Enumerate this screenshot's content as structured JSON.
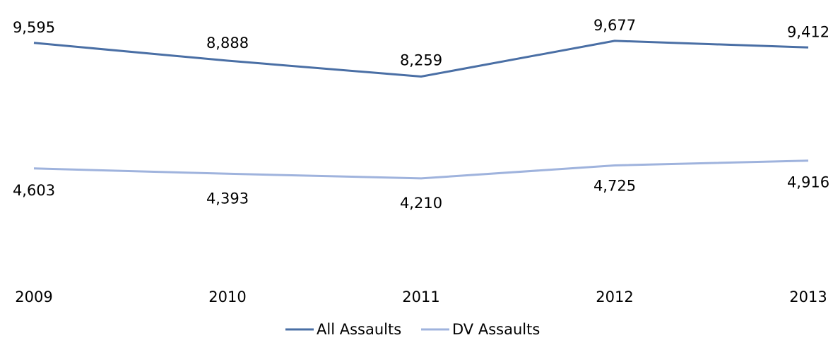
{
  "chart_data": {
    "type": "line",
    "title": "",
    "xlabel": "",
    "ylabel": "",
    "categories": [
      "2009",
      "2010",
      "2011",
      "2012",
      "2013"
    ],
    "series": [
      {
        "name": "All Assaults",
        "color": "#4a6fa5",
        "values": [
          9595,
          8888,
          8259,
          9677,
          9412
        ],
        "labels": [
          "9,595",
          "8,888",
          "8,259",
          "9,677",
          "9,412"
        ]
      },
      {
        "name": "DV Assaults",
        "color": "#9fb3dd",
        "values": [
          4603,
          4393,
          4210,
          4725,
          4916
        ],
        "labels": [
          "4,603",
          "4,393",
          "4,210",
          "4,725",
          "4,916"
        ]
      }
    ],
    "ylim": [
      0,
      11300
    ],
    "grid": false,
    "legend": "bottom-center"
  }
}
